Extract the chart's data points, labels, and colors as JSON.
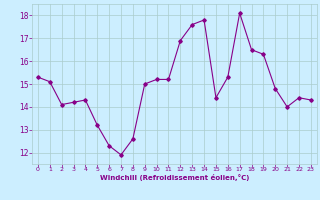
{
  "x": [
    0,
    1,
    2,
    3,
    4,
    5,
    6,
    7,
    8,
    9,
    10,
    11,
    12,
    13,
    14,
    15,
    16,
    17,
    18,
    19,
    20,
    21,
    22,
    23
  ],
  "y": [
    15.3,
    15.1,
    14.1,
    14.2,
    14.3,
    13.2,
    12.3,
    11.9,
    12.6,
    15.0,
    15.2,
    15.2,
    16.9,
    17.6,
    17.8,
    14.4,
    15.3,
    18.1,
    16.5,
    16.3,
    14.8,
    14.0,
    14.4,
    14.3
  ],
  "line_color": "#880088",
  "marker": "D",
  "marker_size": 1.8,
  "line_width": 0.8,
  "bg_color": "#cceeff",
  "grid_color": "#aacccc",
  "xlabel": "Windchill (Refroidissement éolien,°C)",
  "xlabel_color": "#880088",
  "tick_color": "#880088",
  "ylim": [
    11.5,
    18.5
  ],
  "yticks": [
    12,
    13,
    14,
    15,
    16,
    17,
    18
  ],
  "xticks": [
    0,
    1,
    2,
    3,
    4,
    5,
    6,
    7,
    8,
    9,
    10,
    11,
    12,
    13,
    14,
    15,
    16,
    17,
    18,
    19,
    20,
    21,
    22,
    23
  ],
  "xlim": [
    -0.5,
    23.5
  ]
}
